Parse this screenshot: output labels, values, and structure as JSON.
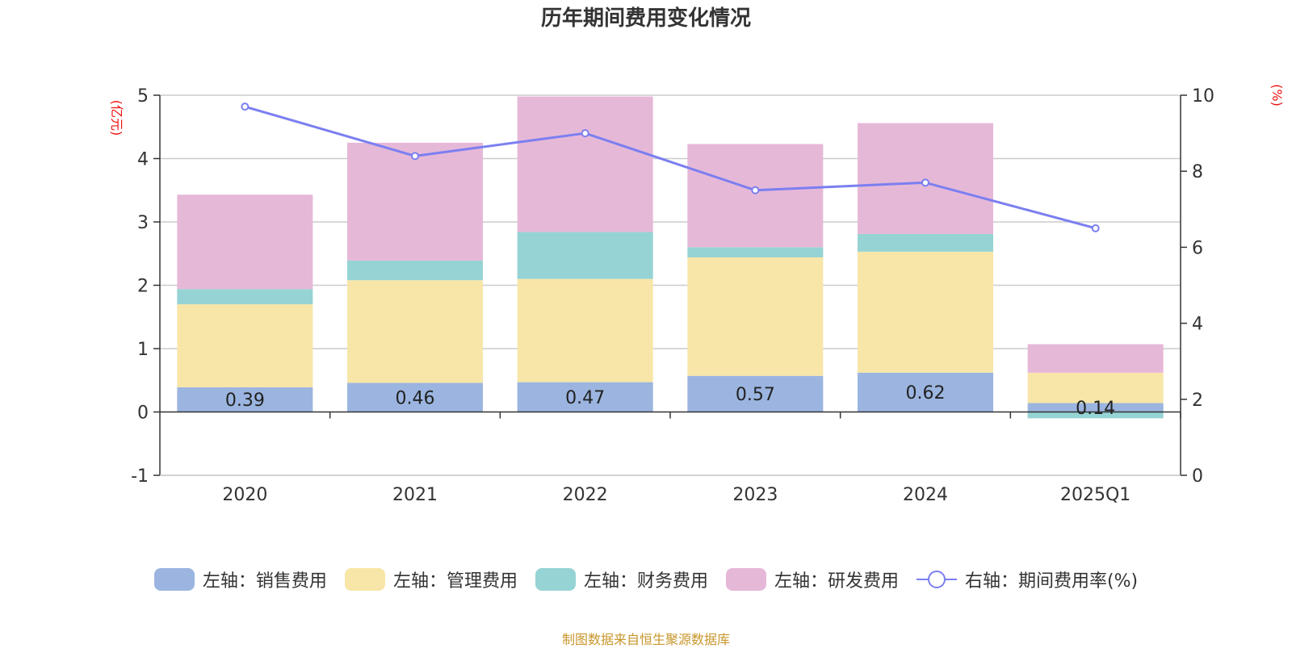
{
  "chart_data": {
    "type": "bar",
    "title": "历年期间费用变化情况",
    "categories": [
      "2020",
      "2021",
      "2022",
      "2023",
      "2024",
      "2025Q1"
    ],
    "left_axis": {
      "unit": "(亿元)",
      "ylim": [
        -1,
        5
      ],
      "ticks": [
        "-1",
        "0",
        "1",
        "2",
        "3",
        "4",
        "5"
      ]
    },
    "right_axis": {
      "unit": "(%)",
      "ylim": [
        0,
        10
      ],
      "ticks": [
        "0",
        "2",
        "4",
        "6",
        "8",
        "10"
      ]
    },
    "series": [
      {
        "name": "左轴：销售费用",
        "type": "stacked-bar",
        "axis": "left",
        "color": "#9bb5e0",
        "values": [
          0.39,
          0.46,
          0.47,
          0.57,
          0.62,
          0.14
        ],
        "labels": [
          "0.39",
          "0.46",
          "0.47",
          "0.57",
          "0.62",
          "0.14"
        ]
      },
      {
        "name": "左轴：管理费用",
        "type": "stacked-bar",
        "axis": "left",
        "color": "#f7e6a8",
        "values": [
          1.31,
          1.62,
          1.63,
          1.87,
          1.91,
          0.48
        ]
      },
      {
        "name": "左轴：财务费用",
        "type": "stacked-bar",
        "axis": "left",
        "color": "#96d3d4",
        "values": [
          0.24,
          0.31,
          0.74,
          0.16,
          0.28,
          -0.1
        ]
      },
      {
        "name": "左轴：研发费用",
        "type": "stacked-bar",
        "axis": "left",
        "color": "#e6b8d8",
        "values": [
          1.49,
          1.86,
          2.14,
          1.63,
          1.75,
          0.45
        ]
      },
      {
        "name": "右轴：期间费用率(%)",
        "type": "line",
        "axis": "right",
        "color": "#7b7ff0",
        "values": [
          9.7,
          8.4,
          9.0,
          7.5,
          7.7,
          6.5
        ]
      }
    ],
    "source": "制图数据来自恒生聚源数据库"
  }
}
